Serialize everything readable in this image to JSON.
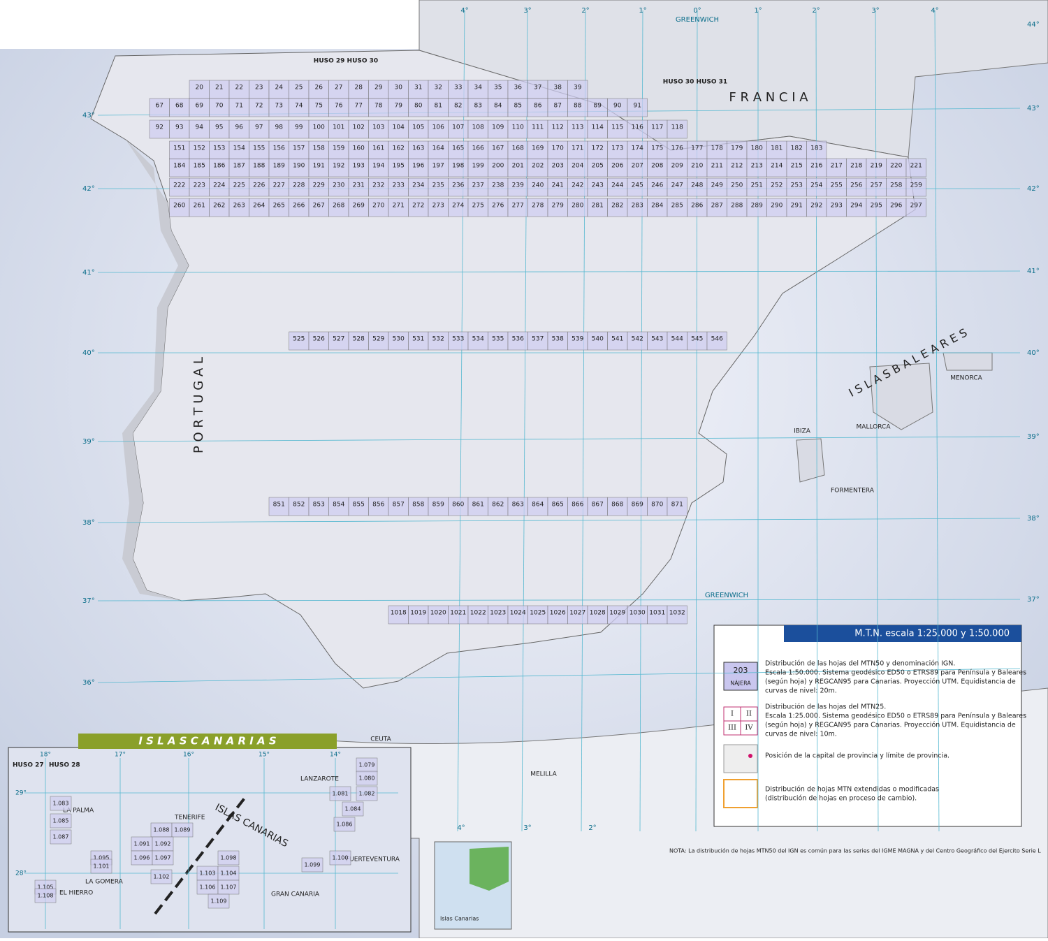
{
  "title_bar": "M.T.N.   escala 1:25.000 y 1:50.000",
  "regions": {
    "france": "F R A N C I A",
    "portugal": "P O R T U G A L",
    "baleares": "I S L A S   B A L E A R E S",
    "greenwich_top": "GREENWICH",
    "greenwich_mid": "GREENWICH",
    "huso_2930": "HUSO 29   HUSO 30",
    "huso_3031": "HUSO 30   HUSO 31"
  },
  "places": [
    "MENORCA",
    "MALLORCA",
    "IBIZA",
    "FORMENTERA",
    "CEUTA",
    "MELILLA"
  ],
  "graticule": {
    "lat": [
      "44°",
      "43°",
      "42°",
      "41°",
      "40°",
      "39°",
      "38°",
      "37°",
      "36°"
    ],
    "lon_top": [
      "4°",
      "3°",
      "2°",
      "1°",
      "0°",
      "1°",
      "2°",
      "3°",
      "4°"
    ],
    "lon_bottom": [
      "4°",
      "3°",
      "2°"
    ]
  },
  "sheets": {
    "rows": [
      [
        20,
        21,
        22,
        23,
        24,
        25,
        26,
        27,
        28,
        29,
        30,
        31,
        32,
        33,
        34,
        35,
        36,
        37,
        38,
        39
      ],
      [
        67,
        68,
        69,
        70,
        71,
        72,
        73,
        74,
        75,
        76,
        77,
        78,
        79,
        80,
        81,
        82,
        83,
        84,
        85,
        86,
        87,
        88,
        89,
        90,
        91
      ],
      [
        92,
        93,
        94,
        95,
        96,
        97,
        98,
        99,
        100,
        101,
        102,
        103,
        104,
        105,
        106,
        107,
        108,
        109,
        110,
        111,
        112,
        113,
        114,
        115,
        116,
        117,
        118
      ],
      [
        151,
        152,
        153,
        154,
        155,
        156,
        157,
        158,
        159,
        160,
        161,
        162,
        163,
        164,
        165,
        166,
        167,
        168,
        169,
        170,
        171,
        172,
        173,
        174,
        175,
        176,
        177,
        178,
        179,
        180,
        181,
        182,
        183
      ],
      [
        184,
        185,
        186,
        187,
        188,
        189,
        190,
        191,
        192,
        193,
        194,
        195,
        196,
        197,
        198,
        199,
        200,
        201,
        202,
        203,
        204,
        205,
        206,
        207,
        208,
        209,
        210,
        211,
        212,
        213,
        214,
        215,
        216,
        217,
        218,
        219,
        220,
        221
      ],
      [
        222,
        223,
        224,
        225,
        226,
        227,
        228,
        229,
        230,
        231,
        232,
        233,
        234,
        235,
        236,
        237,
        238,
        239,
        240,
        241,
        242,
        243,
        244,
        245,
        246,
        247,
        248,
        249,
        250,
        251,
        252,
        253,
        254,
        255,
        256,
        257,
        258,
        259
      ],
      [
        260,
        261,
        262,
        263,
        264,
        265,
        266,
        267,
        268,
        269,
        270,
        271,
        272,
        273,
        274,
        275,
        276,
        277,
        278,
        279,
        280,
        281,
        282,
        283,
        284,
        285,
        286,
        287,
        288,
        289,
        290,
        291,
        292,
        293,
        294,
        295,
        296,
        297
      ],
      [
        525,
        526,
        527,
        528,
        529,
        530,
        531,
        532,
        533,
        534,
        535,
        536,
        537,
        538,
        539,
        540,
        541,
        542,
        543,
        544,
        545,
        546
      ],
      [
        851,
        852,
        853,
        854,
        855,
        856,
        857,
        858,
        859,
        860,
        861,
        862,
        863,
        864,
        865,
        866,
        867,
        868,
        869,
        870,
        871
      ],
      [
        1018,
        1019,
        1020,
        1021,
        1022,
        1023,
        1024,
        1025,
        1026,
        1027,
        1028,
        1029,
        1030,
        1031,
        1032
      ]
    ]
  },
  "legend": {
    "sample_number": "203",
    "sample_name": "NÁJERA",
    "quarters": [
      "I",
      "II",
      "III",
      "IV"
    ],
    "item1": [
      "Distribución de las hojas del MTN50 y denominación IGN.",
      "Escala 1:50.000. Sistema geodésico ED50 o ETRS89 para Península y Baleares",
      "(según hoja) y REGCAN95 para Canarias. Proyección UTM. Equidistancia de",
      "curvas de nivel: 20m."
    ],
    "item2": [
      "Distribución de las hojas del MTN25.",
      "Escala 1:25.000. Sistema geodésico ED50 o ETRS89 para Península y Baleares",
      "(según hoja) y REGCAN95 para Canarias. Proyección UTM. Equidistancia de",
      "curvas de nivel: 10m."
    ],
    "item3": "Posición de la capital de provincia y límite de provincia.",
    "item4": [
      "Distribución de hojas MTN extendidas o modificadas",
      "(distribución de hojas en proceso de cambio)."
    ]
  },
  "note": "NOTA:    La distribución de hojas MTN50 del IGN es común para las series  del IGME MAGNA y del Centro Geográfico del Ejercito Serie L",
  "minimap_label": "Islas Canarias",
  "canarias": {
    "title": "I S L A S   C A N A R I A S",
    "huso": [
      "HUSO 27",
      "HUSO 28"
    ],
    "lon": [
      "18°",
      "17°",
      "16°",
      "15°",
      "14°"
    ],
    "lat": [
      "29°",
      "28°"
    ],
    "islands": [
      "LA PALMA",
      "TENERIFE",
      "LA GOMERA",
      "EL HIERRO",
      "GRAN CANARIA",
      "LANZAROTE",
      "FUERTEVENTURA",
      "ISLAS CANARIAS"
    ],
    "sheets": [
      "1.083",
      "1.085",
      "1.087",
      "1.088",
      "1.089",
      "1.091",
      "1.092",
      "1.096",
      "1.097",
      "1.102",
      "1.095",
      "1.101",
      "1.105",
      "1.108",
      "1.098",
      "1.103",
      "1.104",
      "1.106",
      "1.107",
      "1.109",
      "1.079",
      "1.080",
      "1.081",
      "1.082",
      "1.084",
      "1.086",
      "1.099",
      "1.100"
    ]
  }
}
